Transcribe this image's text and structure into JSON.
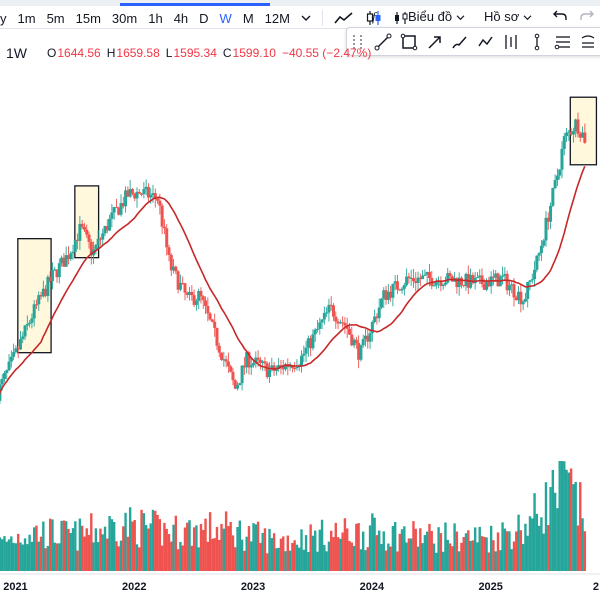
{
  "toolbar": {
    "intervals": [
      {
        "label": "y",
        "selected": false
      },
      {
        "label": "1m",
        "selected": false
      },
      {
        "label": "5m",
        "selected": false
      },
      {
        "label": "15m",
        "selected": false
      },
      {
        "label": "30m",
        "selected": false
      },
      {
        "label": "1h",
        "selected": false
      },
      {
        "label": "4h",
        "selected": false
      },
      {
        "label": "D",
        "selected": false
      },
      {
        "label": "W",
        "selected": true
      },
      {
        "label": "M",
        "selected": false
      },
      {
        "label": "12M",
        "selected": false
      }
    ],
    "chart_type_label": "Biểu đồ",
    "profile_label": "Hồ sơ",
    "accent": "#2962ff"
  },
  "drawing_tools": [
    "trend-line-icon",
    "rectangle-icon",
    "arrow-icon",
    "brush-icon",
    "pattern-icon",
    "fork-icon",
    "measure-icon",
    "fib-icon",
    "elliott-icon"
  ],
  "legend": {
    "timeframe": "1W",
    "open_label": "O",
    "open": "1644.56",
    "high_label": "H",
    "high": "1659.58",
    "low_label": "L",
    "low": "1595.34",
    "close_label": "C",
    "close": "1599.10",
    "change": "−40.55 (−2.47%)",
    "change_color": "#f23645"
  },
  "chart_data": {
    "type": "candlestick",
    "timeframe": "1W",
    "x_axis_labels": [
      "2021",
      "2022",
      "2023",
      "2024",
      "2025",
      "2"
    ],
    "price_keypoints": [
      {
        "x": 2020.85,
        "price": 1000
      },
      {
        "x": 2021.0,
        "price": 1090
      },
      {
        "x": 2021.15,
        "price": 1190
      },
      {
        "x": 2021.3,
        "price": 1270
      },
      {
        "x": 2021.45,
        "price": 1330
      },
      {
        "x": 2021.55,
        "price": 1390
      },
      {
        "x": 2021.65,
        "price": 1330
      },
      {
        "x": 2021.8,
        "price": 1410
      },
      {
        "x": 2021.95,
        "price": 1470
      },
      {
        "x": 2022.05,
        "price": 1475
      },
      {
        "x": 2022.2,
        "price": 1460
      },
      {
        "x": 2022.3,
        "price": 1300
      },
      {
        "x": 2022.45,
        "price": 1220
      },
      {
        "x": 2022.55,
        "price": 1230
      },
      {
        "x": 2022.7,
        "price": 1120
      },
      {
        "x": 2022.85,
        "price": 1010
      },
      {
        "x": 2022.95,
        "price": 1080
      },
      {
        "x": 2023.15,
        "price": 1050
      },
      {
        "x": 2023.4,
        "price": 1080
      },
      {
        "x": 2023.65,
        "price": 1200
      },
      {
        "x": 2023.78,
        "price": 1160
      },
      {
        "x": 2023.9,
        "price": 1090
      },
      {
        "x": 2024.1,
        "price": 1230
      },
      {
        "x": 2024.3,
        "price": 1270
      },
      {
        "x": 2024.6,
        "price": 1270
      },
      {
        "x": 2024.9,
        "price": 1260
      },
      {
        "x": 2025.1,
        "price": 1270
      },
      {
        "x": 2025.28,
        "price": 1220
      },
      {
        "x": 2025.4,
        "price": 1320
      },
      {
        "x": 2025.55,
        "price": 1500
      },
      {
        "x": 2025.62,
        "price": 1600
      },
      {
        "x": 2025.72,
        "price": 1640
      },
      {
        "x": 2025.8,
        "price": 1599
      }
    ],
    "moving_average": {
      "color": "#c62828",
      "type": "moving-average"
    },
    "volume_scale_note": "relative volume, 0-1",
    "volume_keypoints": [
      {
        "x": 2020.85,
        "v": 0.28
      },
      {
        "x": 2021.1,
        "v": 0.42
      },
      {
        "x": 2021.5,
        "v": 0.38
      },
      {
        "x": 2021.9,
        "v": 0.5
      },
      {
        "x": 2022.3,
        "v": 0.42
      },
      {
        "x": 2022.75,
        "v": 0.45
      },
      {
        "x": 2023.2,
        "v": 0.32
      },
      {
        "x": 2023.6,
        "v": 0.38
      },
      {
        "x": 2024.0,
        "v": 0.42
      },
      {
        "x": 2024.5,
        "v": 0.36
      },
      {
        "x": 2025.0,
        "v": 0.36
      },
      {
        "x": 2025.3,
        "v": 0.48
      },
      {
        "x": 2025.62,
        "v": 0.95
      },
      {
        "x": 2025.8,
        "v": 0.55
      }
    ],
    "highlight_boxes": [
      {
        "x_from": 2021.02,
        "x_to": 2021.3,
        "price_low": 1095,
        "price_high": 1365
      },
      {
        "x_from": 2021.5,
        "x_to": 2021.7,
        "price_low": 1320,
        "price_high": 1490
      },
      {
        "x_from": 2025.67,
        "x_to": 2025.89,
        "price_low": 1540,
        "price_high": 1700
      }
    ],
    "colors": {
      "up": "#26a69a",
      "down": "#ef5350",
      "ma": "#c62828",
      "highlight": "#fff8dc"
    }
  }
}
